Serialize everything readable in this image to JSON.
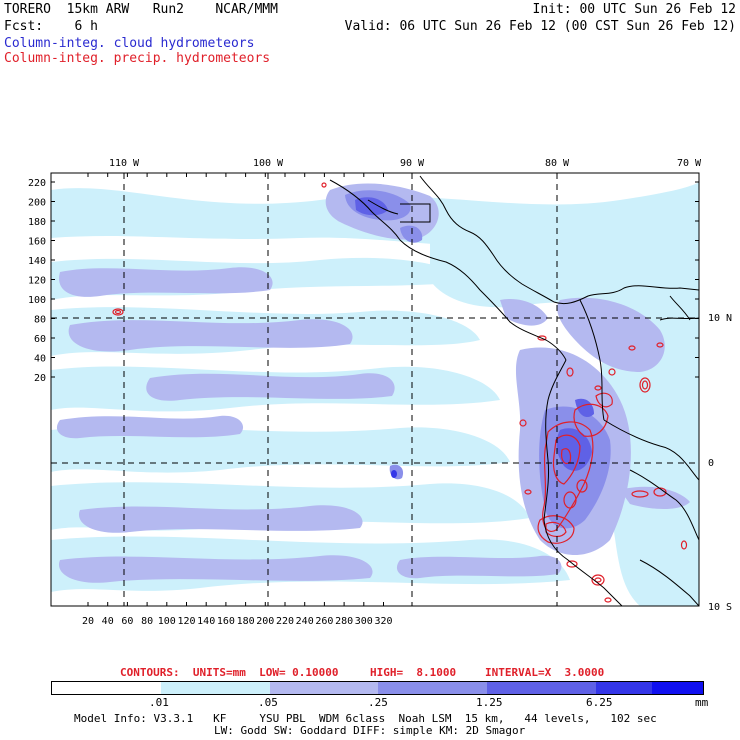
{
  "header": {
    "line1_left": "TORERO  15km ARW   Run2    NCAR/MMM",
    "line1_right": "Init: 00 UTC Sun 26 Feb 12",
    "line2_left": "Fcst:    6 h",
    "line2_right": "Valid: 06 UTC Sun 26 Feb 12 (00 CST Sun 26 Feb 12)",
    "legend_cloud": "Column-integ. cloud hydrometeors",
    "legend_precip": "Column-integ. precip. hydrometeors"
  },
  "map": {
    "lon_labels": [
      "110 W",
      "100 W",
      "90 W",
      "80 W",
      "70 W"
    ],
    "lat_labels": [
      "10 N",
      "0",
      "10 S"
    ],
    "y_ticks": [
      "220",
      "200",
      "180",
      "160",
      "140",
      "120",
      "100",
      "80",
      "60",
      "40",
      "20"
    ],
    "x_ticks": [
      "20",
      "40",
      "60",
      "80",
      "100",
      "120",
      "140",
      "160",
      "180",
      "200",
      "220",
      "240",
      "260",
      "280",
      "300",
      "320"
    ]
  },
  "contour_info": {
    "units": "CONTOURS:  UNITS=mm  LOW= 0.10000",
    "high": "HIGH=  8.1000",
    "interval": "INTERVAL=X  3.0000"
  },
  "colorbar": {
    "labels": [
      ".01",
      ".05",
      ".25",
      "1.25",
      "6.25"
    ],
    "unit": "mm",
    "colors": [
      "#ffffff",
      "#cdf0fb",
      "#b4b9f0",
      "#8a8fea",
      "#5f61e6",
      "#3436e8",
      "#1010f0"
    ]
  },
  "footer": {
    "line1": "Model Info: V3.3.1   KF     YSU PBL  WDM 6class  Noah LSM  15 km,   44 levels,   102 sec",
    "line2": "LW: Godd SW: Goddard DIFF: simple KM: 2D Smagor"
  }
}
